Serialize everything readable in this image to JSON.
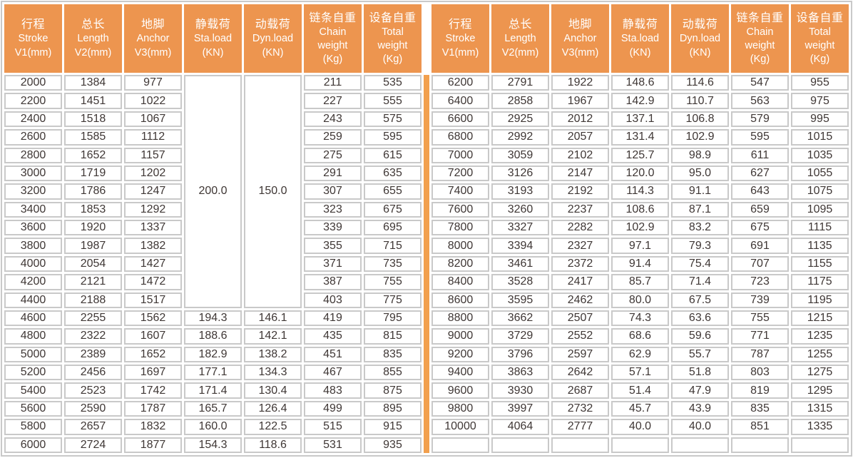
{
  "header": {
    "columns": [
      {
        "key": "stroke",
        "lines": [
          "行程",
          "Stroke",
          "V1(mm)"
        ]
      },
      {
        "key": "length",
        "lines": [
          "总长",
          "Length",
          "V2(mm)"
        ]
      },
      {
        "key": "anchor",
        "lines": [
          "地脚",
          "Anchor",
          "V3(mm)"
        ]
      },
      {
        "key": "sta-load",
        "lines": [
          "静载荷",
          "Sta.load",
          "(KN)"
        ]
      },
      {
        "key": "dyn-load",
        "lines": [
          "动载荷",
          "Dyn.load",
          "(KN)"
        ]
      },
      {
        "key": "chain-weight",
        "lines": [
          "链条自重",
          "Chain",
          "weight",
          "(Kg)"
        ]
      },
      {
        "key": "total-weight",
        "lines": [
          "设备自重",
          "Total",
          "weight",
          "(Kg)"
        ]
      }
    ]
  },
  "tables": {
    "left": {
      "merged": {
        "sta": "200.0",
        "dyn": "150.0",
        "rowspan": 13
      },
      "rows": [
        [
          "2000",
          "1384",
          "977",
          null,
          null,
          "211",
          "535"
        ],
        [
          "2200",
          "1451",
          "1022",
          null,
          null,
          "227",
          "555"
        ],
        [
          "2400",
          "1518",
          "1067",
          null,
          null,
          "243",
          "575"
        ],
        [
          "2600",
          "1585",
          "1112",
          null,
          null,
          "259",
          "595"
        ],
        [
          "2800",
          "1652",
          "1157",
          null,
          null,
          "275",
          "615"
        ],
        [
          "3000",
          "1719",
          "1202",
          null,
          null,
          "291",
          "635"
        ],
        [
          "3200",
          "1786",
          "1247",
          null,
          null,
          "307",
          "655"
        ],
        [
          "3400",
          "1853",
          "1292",
          null,
          null,
          "323",
          "675"
        ],
        [
          "3600",
          "1920",
          "1337",
          null,
          null,
          "339",
          "695"
        ],
        [
          "3800",
          "1987",
          "1382",
          null,
          null,
          "355",
          "715"
        ],
        [
          "4000",
          "2054",
          "1427",
          null,
          null,
          "371",
          "735"
        ],
        [
          "4200",
          "2121",
          "1472",
          null,
          null,
          "387",
          "755"
        ],
        [
          "4400",
          "2188",
          "1517",
          null,
          null,
          "403",
          "775"
        ],
        [
          "4600",
          "2255",
          "1562",
          "194.3",
          "146.1",
          "419",
          "795"
        ],
        [
          "4800",
          "2322",
          "1607",
          "188.6",
          "142.1",
          "435",
          "815"
        ],
        [
          "5000",
          "2389",
          "1652",
          "182.9",
          "138.2",
          "451",
          "835"
        ],
        [
          "5200",
          "2456",
          "1697",
          "177.1",
          "134.3",
          "467",
          "855"
        ],
        [
          "5400",
          "2523",
          "1742",
          "171.4",
          "130.4",
          "483",
          "875"
        ],
        [
          "5600",
          "2590",
          "1787",
          "165.7",
          "126.4",
          "499",
          "895"
        ],
        [
          "5800",
          "2657",
          "1832",
          "160.0",
          "122.5",
          "515",
          "915"
        ],
        [
          "6000",
          "2724",
          "1877",
          "154.3",
          "118.6",
          "531",
          "935"
        ]
      ]
    },
    "right": {
      "rows": [
        [
          "6200",
          "2791",
          "1922",
          "148.6",
          "114.6",
          "547",
          "955"
        ],
        [
          "6400",
          "2858",
          "1967",
          "142.9",
          "110.7",
          "563",
          "975"
        ],
        [
          "6600",
          "2925",
          "2012",
          "137.1",
          "106.8",
          "579",
          "995"
        ],
        [
          "6800",
          "2992",
          "2057",
          "131.4",
          "102.9",
          "595",
          "1015"
        ],
        [
          "7000",
          "3059",
          "2102",
          "125.7",
          "98.9",
          "611",
          "1035"
        ],
        [
          "7200",
          "3126",
          "2147",
          "120.0",
          "95.0",
          "627",
          "1055"
        ],
        [
          "7400",
          "3193",
          "2192",
          "114.3",
          "91.1",
          "643",
          "1075"
        ],
        [
          "7600",
          "3260",
          "2237",
          "108.6",
          "87.1",
          "659",
          "1095"
        ],
        [
          "7800",
          "3327",
          "2282",
          "102.9",
          "83.2",
          "675",
          "1115"
        ],
        [
          "8000",
          "3394",
          "2327",
          "97.1",
          "79.3",
          "691",
          "1135"
        ],
        [
          "8200",
          "3461",
          "2372",
          "91.4",
          "75.4",
          "707",
          "1155"
        ],
        [
          "8400",
          "3528",
          "2417",
          "85.7",
          "71.4",
          "723",
          "1175"
        ],
        [
          "8600",
          "3595",
          "2462",
          "80.0",
          "67.5",
          "739",
          "1195"
        ],
        [
          "8800",
          "3662",
          "2507",
          "74.3",
          "63.6",
          "755",
          "1215"
        ],
        [
          "9000",
          "3729",
          "2552",
          "68.6",
          "59.6",
          "771",
          "1235"
        ],
        [
          "9200",
          "3796",
          "2597",
          "62.9",
          "55.7",
          "787",
          "1255"
        ],
        [
          "9400",
          "3863",
          "2642",
          "57.1",
          "51.8",
          "803",
          "1275"
        ],
        [
          "9600",
          "3930",
          "2687",
          "51.4",
          "47.9",
          "819",
          "1295"
        ],
        [
          "9800",
          "3997",
          "2732",
          "45.7",
          "43.9",
          "835",
          "1315"
        ],
        [
          "10000",
          "4064",
          "2777",
          "40.0",
          "40.0",
          "851",
          "1335"
        ],
        [
          "",
          "",
          "",
          "",
          "",
          "",
          ""
        ]
      ]
    }
  },
  "colors": {
    "header_bg": "#ED954F",
    "divider": "#F2A04E",
    "border": "#C9C9C9",
    "text": "#3F3735"
  }
}
